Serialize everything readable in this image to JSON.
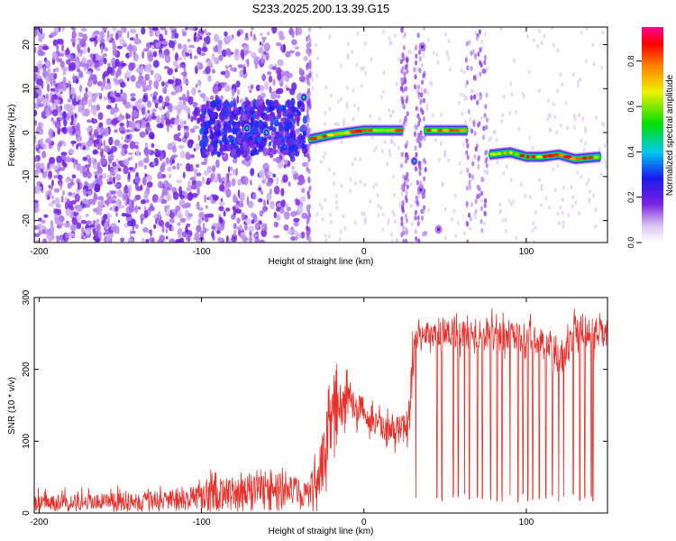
{
  "figure": {
    "title": "S233.2025.200.13.39.G15"
  },
  "chart_data": [
    {
      "type": "heatmap",
      "title": "S233.2025.200.13.39.G15",
      "xlabel": "Height of straight line (km)",
      "ylabel": "Frequency (Hz)",
      "xlim": [
        -203,
        150
      ],
      "ylim": [
        -25,
        24
      ],
      "xticks": [
        -200,
        -100,
        0,
        100
      ],
      "yticks": [
        20,
        10,
        0,
        -10,
        -20
      ],
      "xtick_labels": [
        "-200",
        "-100",
        "0",
        "100"
      ],
      "ytick_labels": [
        "20",
        "10",
        "0",
        "-10",
        "-20"
      ],
      "grid": false,
      "colorbar": {
        "label": "Normalized spectral amplitude",
        "range": [
          0,
          0.95
        ],
        "ticks": [
          0.0,
          0.2,
          0.4,
          0.6,
          0.8
        ],
        "tick_labels": [
          "0.0",
          "0.2",
          "0.4",
          "0.6",
          "0.8"
        ],
        "colormap": "rainbow (white-violet-blue-cyan-green-yellow-red-magenta)"
      },
      "noise_region_x": [
        -203,
        -35
      ],
      "data_gaps_x": [
        [
          -35,
          -33
        ],
        [
          23,
          27
        ],
        [
          31,
          38
        ],
        [
          63,
          76
        ]
      ],
      "frequency_traces": [
        {
          "x": [
            -33,
            -20,
            0,
            20,
            23
          ],
          "y": [
            -1.5,
            -0.5,
            0.5,
            0.5,
            0.5
          ],
          "peak": 0.95
        },
        {
          "x": [
            38,
            50,
            63
          ],
          "y": [
            0.5,
            0.5,
            0.5
          ],
          "peak": 0.9
        },
        {
          "x": [
            78,
            90,
            100,
            110,
            120,
            130,
            145
          ],
          "y": [
            -5,
            -4.5,
            -5.5,
            -5.5,
            -5,
            -6,
            -5.5
          ],
          "peak": 0.95
        }
      ],
      "isolated_features": [
        {
          "x": -37,
          "y": 8,
          "peak": 0.5
        },
        {
          "x": -72,
          "y": 1,
          "peak": 0.5
        },
        {
          "x": -60,
          "y": 0,
          "peak": 0.45
        },
        {
          "x": 31,
          "y": -6.5,
          "peak": 0.4
        },
        {
          "x": 36,
          "y": 19.5,
          "peak": 0.2
        },
        {
          "x": 35,
          "y": -13,
          "peak": 0.2
        },
        {
          "x": 46,
          "y": -22,
          "peak": 0.2
        }
      ]
    },
    {
      "type": "line",
      "xlabel": "Height of straight line (km)",
      "ylabel": "SNR (10 * v/v)",
      "xlim": [
        -203,
        150
      ],
      "ylim": [
        0,
        300
      ],
      "xticks": [
        -200,
        -100,
        0,
        100
      ],
      "yticks": [
        0,
        100,
        200,
        300
      ],
      "xtick_labels": [
        "-200",
        "-100",
        "0",
        "100"
      ],
      "ytick_labels": [
        "0",
        "100",
        "200",
        "300"
      ],
      "grid": false,
      "series": [
        {
          "color": "#e8302a",
          "envelope": {
            "x": [
              -203,
              -150,
              -120,
              -100,
              -90,
              -80,
              -70,
              -60,
              -50,
              -45,
              -40,
              -35,
              -30,
              -25,
              -20,
              -15,
              -10,
              -5,
              0,
              5,
              10,
              15,
              20,
              25,
              28,
              30,
              31,
              35,
              40,
              50,
              60,
              70,
              80,
              90,
              100,
              110,
              115,
              120,
              125,
              130,
              135,
              140,
              150
            ],
            "mean": [
              15,
              16,
              18,
              22,
              24,
              27,
              32,
              35,
              36,
              33,
              30,
              25,
              40,
              80,
              130,
              150,
              160,
              150,
              140,
              130,
              120,
              115,
              115,
              120,
              135,
              200,
              240,
              250,
              250,
              250,
              250,
              245,
              250,
              245,
              245,
              240,
              235,
              215,
              225,
              255,
              255,
              250,
              250
            ],
            "max": [
              35,
              38,
              42,
              55,
              70,
              65,
              75,
              80,
              85,
              70,
              65,
              60,
              90,
              160,
              200,
              215,
              200,
              190,
              175,
              160,
              150,
              145,
              150,
              150,
              180,
              260,
              270,
              275,
              280,
              280,
              285,
              280,
              285,
              280,
              280,
              275,
              270,
              260,
              265,
              290,
              295,
              290,
              285
            ]
          },
          "dropouts_x": [
            32,
            45,
            48,
            55,
            58,
            62,
            65,
            70,
            73,
            78,
            82,
            85,
            90,
            95,
            98,
            101,
            104,
            108,
            112,
            116,
            120,
            123,
            129,
            133,
            136,
            140,
            141
          ],
          "dropout_min": 15
        }
      ]
    }
  ]
}
